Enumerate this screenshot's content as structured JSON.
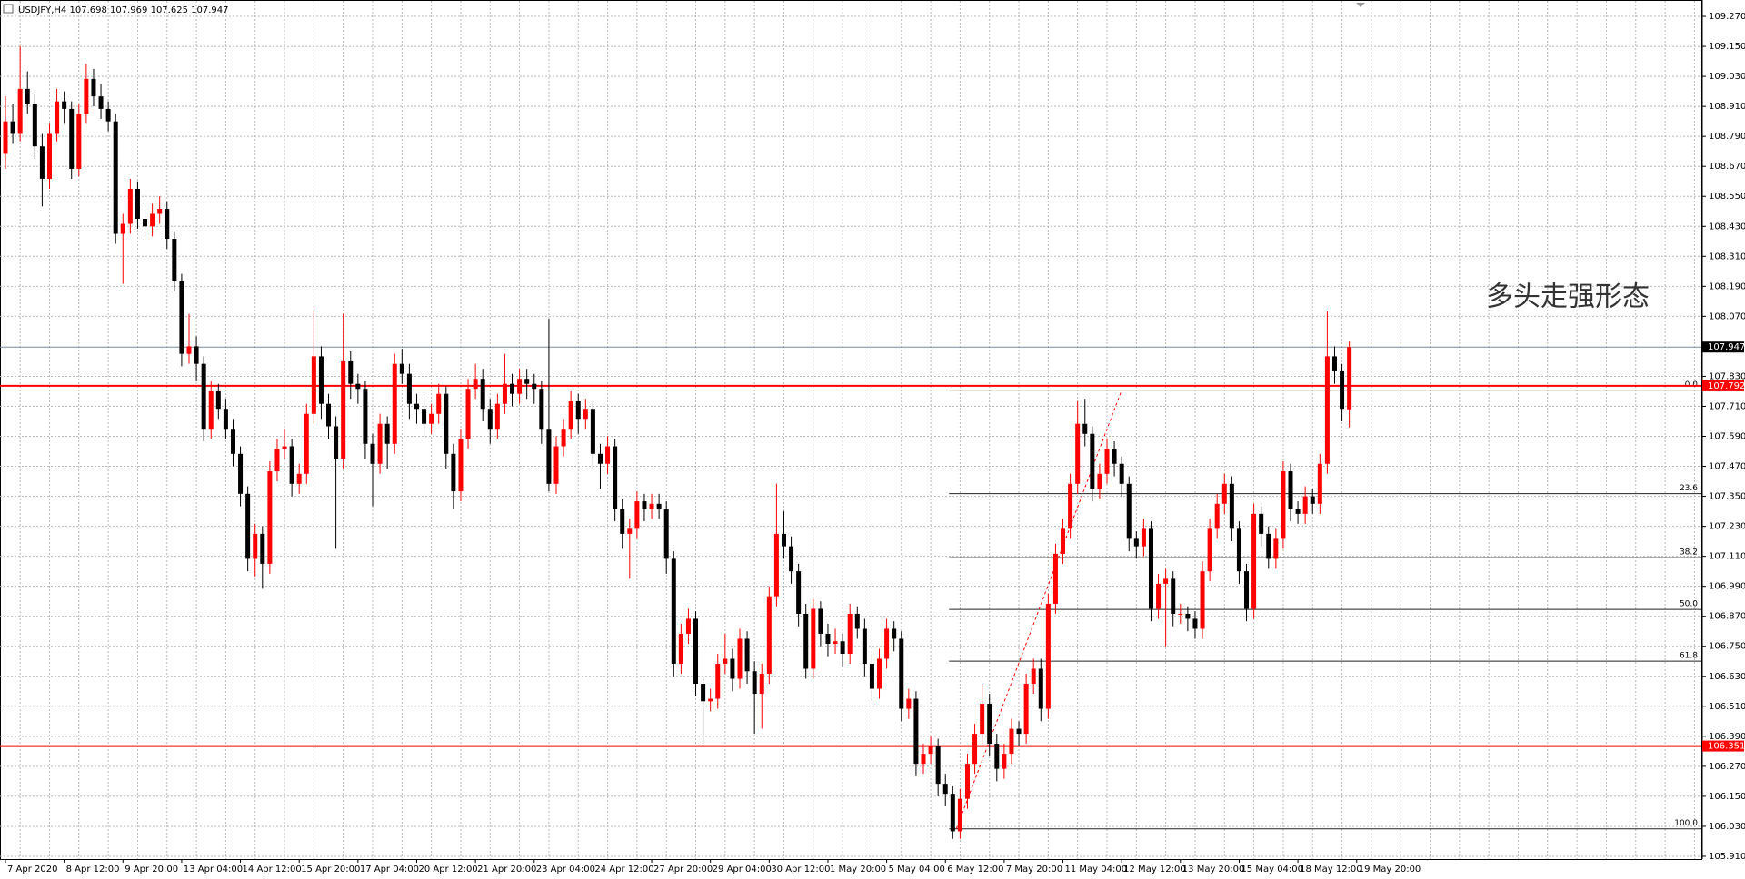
{
  "chart_data": {
    "type": "candlestick",
    "symbol": "USDJPY,H4",
    "annotation": "多头走强形态",
    "up_color": "#ff0000",
    "down_color": "#000000",
    "grid": true,
    "ylim": [
      105.899,
      109.321
    ],
    "yticks": [
      {
        "value": 109.27,
        "label": "109.270"
      },
      {
        "value": 109.15,
        "label": "109.150"
      },
      {
        "value": 109.03,
        "label": "109.030"
      },
      {
        "value": 108.91,
        "label": "108.910"
      },
      {
        "value": 108.79,
        "label": "108.790"
      },
      {
        "value": 108.67,
        "label": "108.670"
      },
      {
        "value": 108.55,
        "label": "108.550"
      },
      {
        "value": 108.43,
        "label": "108.430"
      },
      {
        "value": 108.31,
        "label": "108.310"
      },
      {
        "value": 108.19,
        "label": "108.190"
      },
      {
        "value": 108.07,
        "label": "108.070"
      },
      {
        "value": 107.83,
        "label": "107.830"
      },
      {
        "value": 107.71,
        "label": "107.710"
      },
      {
        "value": 107.59,
        "label": "107.590"
      },
      {
        "value": 107.47,
        "label": "107.470"
      },
      {
        "value": 107.35,
        "label": "107.350"
      },
      {
        "value": 107.23,
        "label": "107.230"
      },
      {
        "value": 107.11,
        "label": "107.110"
      },
      {
        "value": 106.99,
        "label": "106.990"
      },
      {
        "value": 106.87,
        "label": "106.870"
      },
      {
        "value": 106.75,
        "label": "106.750"
      },
      {
        "value": 106.63,
        "label": "106.630"
      },
      {
        "value": 106.51,
        "label": "106.510"
      },
      {
        "value": 106.39,
        "label": "106.390"
      },
      {
        "value": 106.27,
        "label": "106.270"
      },
      {
        "value": 106.15,
        "label": "106.150"
      },
      {
        "value": 106.03,
        "label": "106.030"
      },
      {
        "value": 105.91,
        "label": "105.910"
      }
    ],
    "x_labels": [
      "7 Apr 2020",
      "8 Apr 12:00",
      "9 Apr 20:00",
      "13 Apr 04:00",
      "14 Apr 12:00",
      "15 Apr 20:00",
      "17 Apr 04:00",
      "20 Apr 12:00",
      "21 Apr 20:00",
      "23 Apr 04:00",
      "24 Apr 12:00",
      "27 Apr 20:00",
      "29 Apr 04:00",
      "30 Apr 12:00",
      "1 May 20:00",
      "5 May 04:00",
      "6 May 12:00",
      "7 May 20:00",
      "11 May 04:00",
      "12 May 12:00",
      "13 May 20:00",
      "15 May 04:00",
      "18 May 12:00",
      "19 May 20:00"
    ],
    "price_lines": [
      {
        "value": 107.792,
        "color": "#ff0000"
      },
      {
        "value": 106.351,
        "color": "#ff0000"
      }
    ],
    "current_line_color": "#7a8aa8",
    "fibonacci": {
      "high": 107.775,
      "low": 106.02,
      "levels": [
        {
          "value": 0,
          "label": "0.0"
        },
        23.6,
        38.2,
        {
          "value": 50,
          "label": "50.0"
        },
        61.8,
        {
          "value": 100,
          "label": "100.0"
        }
      ]
    },
    "candles": [
      [
        108.72,
        108.95,
        108.66,
        108.85
      ],
      [
        108.85,
        108.92,
        108.76,
        108.8
      ],
      [
        108.8,
        109.15,
        108.77,
        108.98
      ],
      [
        108.98,
        109.05,
        108.88,
        108.92
      ],
      [
        108.92,
        108.96,
        108.7,
        108.75
      ],
      [
        108.75,
        108.8,
        108.51,
        108.62
      ],
      [
        108.62,
        108.84,
        108.58,
        108.8
      ],
      [
        108.8,
        108.98,
        108.77,
        108.93
      ],
      [
        108.93,
        108.97,
        108.84,
        108.9
      ],
      [
        108.9,
        108.93,
        108.62,
        108.66
      ],
      [
        108.66,
        108.92,
        108.63,
        108.88
      ],
      [
        108.88,
        109.08,
        108.84,
        109.02
      ],
      [
        109.02,
        109.06,
        108.91,
        108.95
      ],
      [
        108.95,
        109.0,
        108.86,
        108.9
      ],
      [
        108.9,
        108.93,
        108.81,
        108.85
      ],
      [
        108.85,
        108.88,
        108.36,
        108.4
      ],
      [
        108.4,
        108.48,
        108.2,
        108.44
      ],
      [
        108.44,
        108.62,
        108.4,
        108.58
      ],
      [
        108.58,
        108.61,
        108.42,
        108.46
      ],
      [
        108.46,
        108.52,
        108.39,
        108.43
      ],
      [
        108.43,
        108.52,
        108.39,
        108.48
      ],
      [
        108.48,
        108.55,
        108.44,
        108.5
      ],
      [
        108.5,
        108.53,
        108.34,
        108.38
      ],
      [
        108.38,
        108.41,
        108.17,
        108.21
      ],
      [
        108.21,
        108.24,
        107.87,
        107.92
      ],
      [
        107.92,
        108.08,
        107.88,
        107.95
      ],
      [
        107.95,
        107.99,
        107.81,
        107.88
      ],
      [
        107.88,
        107.91,
        107.57,
        107.62
      ],
      [
        107.62,
        107.81,
        107.58,
        107.77
      ],
      [
        107.77,
        107.8,
        107.66,
        107.7
      ],
      [
        107.7,
        107.74,
        107.58,
        107.62
      ],
      [
        107.62,
        107.66,
        107.47,
        107.52
      ],
      [
        107.52,
        107.55,
        107.31,
        107.36
      ],
      [
        107.36,
        107.39,
        107.05,
        107.1
      ],
      [
        107.1,
        107.24,
        107.03,
        107.2
      ],
      [
        107.2,
        107.23,
        106.98,
        107.08
      ],
      [
        107.08,
        107.49,
        107.04,
        107.45
      ],
      [
        107.45,
        107.58,
        107.41,
        107.54
      ],
      [
        107.54,
        107.62,
        107.5,
        107.55
      ],
      [
        107.55,
        107.58,
        107.35,
        107.4
      ],
      [
        107.4,
        107.48,
        107.36,
        107.44
      ],
      [
        107.44,
        107.72,
        107.4,
        107.68
      ],
      [
        107.68,
        108.09,
        107.64,
        107.91
      ],
      [
        107.91,
        107.95,
        107.66,
        107.72
      ],
      [
        107.72,
        107.76,
        107.58,
        107.63
      ],
      [
        107.63,
        107.67,
        107.14,
        107.5
      ],
      [
        107.5,
        108.08,
        107.46,
        107.89
      ],
      [
        107.89,
        107.93,
        107.74,
        107.8
      ],
      [
        107.8,
        107.84,
        107.72,
        107.78
      ],
      [
        107.78,
        107.81,
        107.5,
        107.56
      ],
      [
        107.56,
        107.6,
        107.31,
        107.48
      ],
      [
        107.48,
        107.68,
        107.44,
        107.64
      ],
      [
        107.64,
        107.67,
        107.46,
        107.56
      ],
      [
        107.56,
        107.92,
        107.52,
        107.88
      ],
      [
        107.88,
        107.94,
        107.8,
        107.84
      ],
      [
        107.84,
        107.88,
        107.66,
        107.72
      ],
      [
        107.72,
        107.76,
        107.64,
        107.7
      ],
      [
        107.7,
        107.74,
        107.59,
        107.64
      ],
      [
        107.64,
        107.72,
        107.6,
        107.68
      ],
      [
        107.68,
        107.8,
        107.64,
        107.76
      ],
      [
        107.76,
        107.79,
        107.46,
        107.52
      ],
      [
        107.52,
        107.56,
        107.3,
        107.37
      ],
      [
        107.37,
        107.62,
        107.33,
        107.58
      ],
      [
        107.58,
        107.82,
        107.54,
        107.78
      ],
      [
        107.78,
        107.88,
        107.74,
        107.82
      ],
      [
        107.82,
        107.86,
        107.65,
        107.7
      ],
      [
        107.7,
        107.74,
        107.56,
        107.62
      ],
      [
        107.62,
        107.76,
        107.58,
        107.72
      ],
      [
        107.72,
        107.92,
        107.68,
        107.8
      ],
      [
        107.8,
        107.84,
        107.71,
        107.76
      ],
      [
        107.76,
        107.86,
        107.72,
        107.82
      ],
      [
        107.82,
        107.86,
        107.74,
        107.8
      ],
      [
        107.8,
        107.84,
        107.72,
        107.78
      ],
      [
        107.78,
        107.81,
        107.56,
        107.62
      ],
      [
        107.62,
        108.06,
        107.37,
        107.4
      ],
      [
        107.4,
        107.59,
        107.36,
        107.55
      ],
      [
        107.55,
        107.66,
        107.51,
        107.62
      ],
      [
        107.62,
        107.77,
        107.58,
        107.73
      ],
      [
        107.73,
        107.76,
        107.6,
        107.66
      ],
      [
        107.66,
        107.74,
        107.62,
        107.7
      ],
      [
        107.7,
        107.73,
        107.46,
        107.52
      ],
      [
        107.52,
        107.56,
        107.38,
        107.48
      ],
      [
        107.48,
        107.59,
        107.44,
        107.55
      ],
      [
        107.55,
        107.58,
        107.25,
        107.3
      ],
      [
        107.3,
        107.34,
        107.14,
        107.2
      ],
      [
        107.2,
        107.26,
        107.02,
        107.22
      ],
      [
        107.22,
        107.37,
        107.18,
        107.33
      ],
      [
        107.33,
        107.36,
        107.25,
        107.3
      ],
      [
        107.3,
        107.36,
        107.26,
        107.32
      ],
      [
        107.32,
        107.36,
        107.26,
        107.3
      ],
      [
        107.3,
        107.33,
        107.04,
        107.1
      ],
      [
        107.1,
        107.13,
        106.63,
        106.68
      ],
      [
        106.68,
        106.84,
        106.64,
        106.8
      ],
      [
        106.8,
        106.9,
        106.76,
        106.86
      ],
      [
        106.86,
        106.89,
        106.55,
        106.6
      ],
      [
        106.6,
        106.63,
        106.36,
        106.53
      ],
      [
        106.53,
        106.58,
        106.49,
        106.54
      ],
      [
        106.54,
        106.72,
        106.5,
        106.68
      ],
      [
        106.68,
        106.8,
        106.64,
        106.7
      ],
      [
        106.7,
        106.74,
        106.57,
        106.62
      ],
      [
        106.62,
        106.82,
        106.58,
        106.78
      ],
      [
        106.78,
        106.81,
        106.6,
        106.65
      ],
      [
        106.65,
        106.69,
        106.4,
        106.56
      ],
      [
        106.56,
        106.68,
        106.42,
        106.64
      ],
      [
        106.64,
        106.99,
        106.6,
        106.95
      ],
      [
        106.95,
        107.4,
        106.91,
        107.2
      ],
      [
        107.2,
        107.29,
        107.1,
        107.15
      ],
      [
        107.15,
        107.19,
        107.0,
        107.05
      ],
      [
        107.05,
        107.08,
        106.83,
        106.88
      ],
      [
        106.88,
        106.92,
        106.62,
        106.66
      ],
      [
        106.66,
        106.94,
        106.62,
        106.9
      ],
      [
        106.9,
        106.93,
        106.75,
        106.8
      ],
      [
        106.8,
        106.84,
        106.71,
        106.76
      ],
      [
        106.76,
        106.82,
        106.72,
        106.77
      ],
      [
        106.77,
        106.8,
        106.67,
        106.72
      ],
      [
        106.72,
        106.92,
        106.68,
        106.88
      ],
      [
        106.88,
        106.91,
        106.78,
        106.82
      ],
      [
        106.82,
        106.86,
        106.63,
        106.68
      ],
      [
        106.68,
        106.72,
        106.53,
        106.58
      ],
      [
        106.58,
        106.74,
        106.54,
        106.7
      ],
      [
        106.7,
        106.86,
        106.66,
        106.82
      ],
      [
        106.82,
        106.85,
        106.73,
        106.78
      ],
      [
        106.78,
        106.81,
        106.45,
        106.5
      ],
      [
        106.5,
        106.58,
        106.46,
        106.54
      ],
      [
        106.54,
        106.57,
        106.23,
        106.28
      ],
      [
        106.28,
        106.36,
        106.24,
        106.32
      ],
      [
        106.32,
        106.39,
        106.28,
        106.35
      ],
      [
        106.35,
        106.38,
        106.15,
        106.2
      ],
      [
        106.2,
        106.24,
        106.11,
        106.16
      ],
      [
        106.16,
        106.19,
        105.98,
        106.01
      ],
      [
        106.01,
        106.18,
        105.98,
        106.14
      ],
      [
        106.14,
        106.32,
        106.1,
        106.28
      ],
      [
        106.28,
        106.44,
        106.24,
        106.4
      ],
      [
        106.4,
        106.6,
        106.36,
        106.52
      ],
      [
        106.52,
        106.56,
        106.31,
        106.36
      ],
      [
        106.36,
        106.4,
        106.21,
        106.26
      ],
      [
        106.26,
        106.36,
        106.22,
        106.32
      ],
      [
        106.32,
        106.46,
        106.28,
        106.42
      ],
      [
        106.42,
        106.45,
        106.35,
        106.4
      ],
      [
        106.4,
        106.64,
        106.36,
        106.6
      ],
      [
        106.6,
        106.7,
        106.56,
        106.66
      ],
      [
        106.66,
        106.7,
        106.45,
        106.5
      ],
      [
        106.5,
        106.96,
        106.46,
        106.92
      ],
      [
        106.92,
        107.16,
        106.88,
        107.12
      ],
      [
        107.12,
        107.26,
        107.08,
        107.22
      ],
      [
        107.22,
        107.44,
        107.18,
        107.4
      ],
      [
        107.4,
        107.73,
        107.36,
        107.64
      ],
      [
        107.64,
        107.74,
        107.55,
        107.6
      ],
      [
        107.6,
        107.63,
        107.33,
        107.38
      ],
      [
        107.38,
        107.48,
        107.34,
        107.44
      ],
      [
        107.44,
        107.58,
        107.4,
        107.54
      ],
      [
        107.54,
        107.57,
        107.43,
        107.48
      ],
      [
        107.48,
        107.51,
        107.35,
        107.4
      ],
      [
        107.4,
        107.43,
        107.13,
        107.18
      ],
      [
        107.18,
        107.21,
        107.1,
        107.15
      ],
      [
        107.15,
        107.26,
        107.11,
        107.22
      ],
      [
        107.22,
        107.25,
        106.85,
        106.9
      ],
      [
        106.9,
        107.04,
        106.86,
        107.0
      ],
      [
        107.0,
        107.06,
        106.75,
        107.02
      ],
      [
        107.02,
        107.05,
        106.83,
        106.88
      ],
      [
        106.88,
        106.92,
        106.84,
        106.88
      ],
      [
        106.88,
        106.91,
        106.81,
        106.86
      ],
      [
        106.86,
        106.89,
        106.78,
        106.82
      ],
      [
        106.82,
        107.09,
        106.78,
        107.05
      ],
      [
        107.05,
        107.26,
        107.01,
        107.22
      ],
      [
        107.22,
        107.36,
        107.18,
        107.32
      ],
      [
        107.32,
        107.44,
        107.28,
        107.4
      ],
      [
        107.4,
        107.43,
        107.17,
        107.22
      ],
      [
        107.22,
        107.25,
        107.0,
        107.05
      ],
      [
        107.05,
        107.08,
        106.85,
        106.9
      ],
      [
        106.9,
        107.32,
        106.86,
        107.28
      ],
      [
        107.28,
        107.31,
        107.15,
        107.2
      ],
      [
        107.2,
        107.23,
        107.06,
        107.1
      ],
      [
        107.1,
        107.22,
        107.06,
        107.18
      ],
      [
        107.18,
        107.49,
        107.14,
        107.45
      ],
      [
        107.45,
        107.48,
        107.25,
        107.3
      ],
      [
        107.3,
        107.33,
        107.24,
        107.28
      ],
      [
        107.28,
        107.39,
        107.24,
        107.35
      ],
      [
        107.35,
        107.38,
        107.28,
        107.32
      ],
      [
        107.32,
        107.52,
        107.28,
        107.48
      ],
      [
        107.48,
        108.09,
        107.44,
        107.91
      ],
      [
        107.91,
        107.95,
        107.8,
        107.85
      ],
      [
        107.85,
        107.88,
        107.65,
        107.7
      ],
      [
        107.698,
        107.969,
        107.625,
        107.947
      ]
    ]
  }
}
